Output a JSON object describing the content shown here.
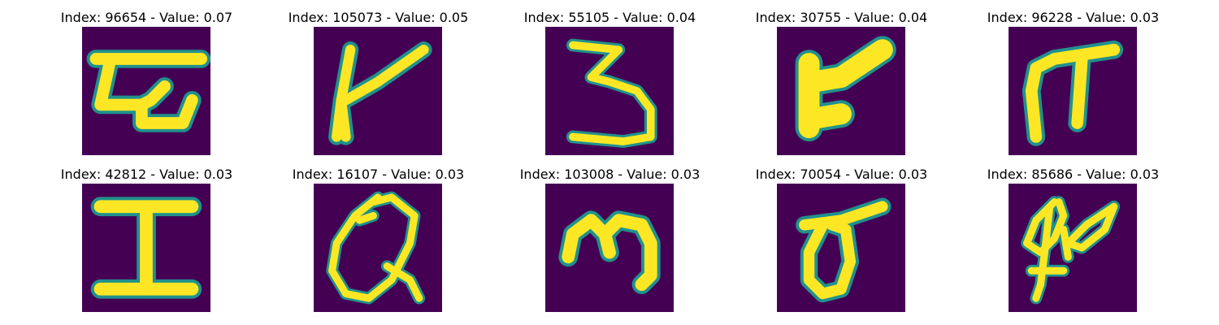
{
  "panels": [
    {
      "title": "Index: 96654 - Value: 0.07",
      "glyph": "tau-like-glyph"
    },
    {
      "title": "Index: 105073 - Value: 0.05",
      "glyph": "k-like-glyph"
    },
    {
      "title": "Index: 55105 - Value: 0.04",
      "glyph": "three-glyph"
    },
    {
      "title": "Index: 30755 - Value: 0.04",
      "glyph": "r-like-glyph"
    },
    {
      "title": "Index: 96228 - Value: 0.03",
      "glyph": "pi-like-glyph"
    },
    {
      "title": "Index: 42812 - Value: 0.03",
      "glyph": "i-glyph"
    },
    {
      "title": "Index: 16107 - Value: 0.03",
      "glyph": "q-like-glyph"
    },
    {
      "title": "Index: 103008 - Value: 0.03",
      "glyph": "m-like-glyph"
    },
    {
      "title": "Index: 70054 - Value: 0.03",
      "glyph": "sigma-like-glyph"
    },
    {
      "title": "Index: 85686 - Value: 0.03",
      "glyph": "scribble-glyph"
    }
  ],
  "colors": {
    "background": "#440154",
    "edge": "#21918c",
    "stroke": "#fde725"
  }
}
